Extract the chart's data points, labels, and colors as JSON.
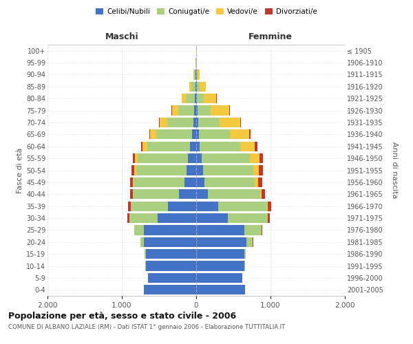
{
  "age_groups": [
    "0-4",
    "5-9",
    "10-14",
    "15-19",
    "20-24",
    "25-29",
    "30-34",
    "35-39",
    "40-44",
    "45-49",
    "50-54",
    "55-59",
    "60-64",
    "65-69",
    "70-74",
    "75-79",
    "80-84",
    "85-89",
    "90-94",
    "95-99",
    "100+"
  ],
  "birth_years": [
    "2001-2005",
    "1996-2000",
    "1991-1995",
    "1986-1990",
    "1981-1985",
    "1976-1980",
    "1971-1975",
    "1966-1970",
    "1961-1965",
    "1956-1960",
    "1951-1955",
    "1946-1950",
    "1941-1945",
    "1936-1940",
    "1931-1935",
    "1926-1930",
    "1921-1925",
    "1916-1920",
    "1911-1915",
    "1906-1910",
    "≤ 1905"
  ],
  "males": {
    "celibi": [
      700,
      650,
      680,
      680,
      700,
      700,
      520,
      380,
      230,
      160,
      130,
      110,
      80,
      60,
      40,
      25,
      15,
      10,
      5,
      3,
      2
    ],
    "coniugati": [
      1,
      2,
      5,
      15,
      50,
      130,
      380,
      500,
      620,
      680,
      680,
      680,
      580,
      480,
      350,
      220,
      120,
      55,
      20,
      5,
      2
    ],
    "vedovi": [
      0,
      0,
      0,
      0,
      0,
      1,
      2,
      3,
      5,
      10,
      20,
      30,
      60,
      80,
      100,
      80,
      60,
      25,
      8,
      2,
      0
    ],
    "divorziati": [
      0,
      0,
      0,
      0,
      2,
      5,
      20,
      30,
      35,
      40,
      40,
      35,
      20,
      10,
      8,
      5,
      3,
      2,
      0,
      0,
      0
    ]
  },
  "females": {
    "nubili": [
      660,
      620,
      650,
      650,
      680,
      650,
      430,
      300,
      160,
      110,
      90,
      70,
      50,
      35,
      25,
      18,
      12,
      8,
      5,
      3,
      2
    ],
    "coniugate": [
      1,
      2,
      5,
      20,
      80,
      230,
      530,
      650,
      700,
      680,
      680,
      650,
      540,
      420,
      290,
      180,
      90,
      40,
      18,
      5,
      2
    ],
    "vedove": [
      0,
      0,
      0,
      0,
      1,
      3,
      5,
      10,
      20,
      40,
      70,
      130,
      200,
      260,
      280,
      250,
      170,
      80,
      25,
      5,
      1
    ],
    "divorziate": [
      0,
      0,
      0,
      1,
      3,
      10,
      30,
      45,
      50,
      55,
      60,
      50,
      30,
      12,
      8,
      5,
      3,
      2,
      1,
      0,
      0
    ]
  },
  "colors": {
    "celibi": "#4472C4",
    "coniugati": "#AACF7E",
    "vedovi": "#F5C842",
    "divorziati": "#C0392B"
  },
  "xlim": 2000,
  "title": "Popolazione per età, sesso e stato civile - 2006",
  "subtitle": "COMUNE DI ALBANO LAZIALE (RM) - Dati ISTAT 1° gennaio 2006 - Elaborazione TUTTITALIA.IT",
  "ylabel_left": "Fasce di età",
  "ylabel_right": "Anni di nascita",
  "xlabel_maschi": "Maschi",
  "xlabel_femmine": "Femmine",
  "bg_color": "#ffffff",
  "grid_color": "#cccccc"
}
